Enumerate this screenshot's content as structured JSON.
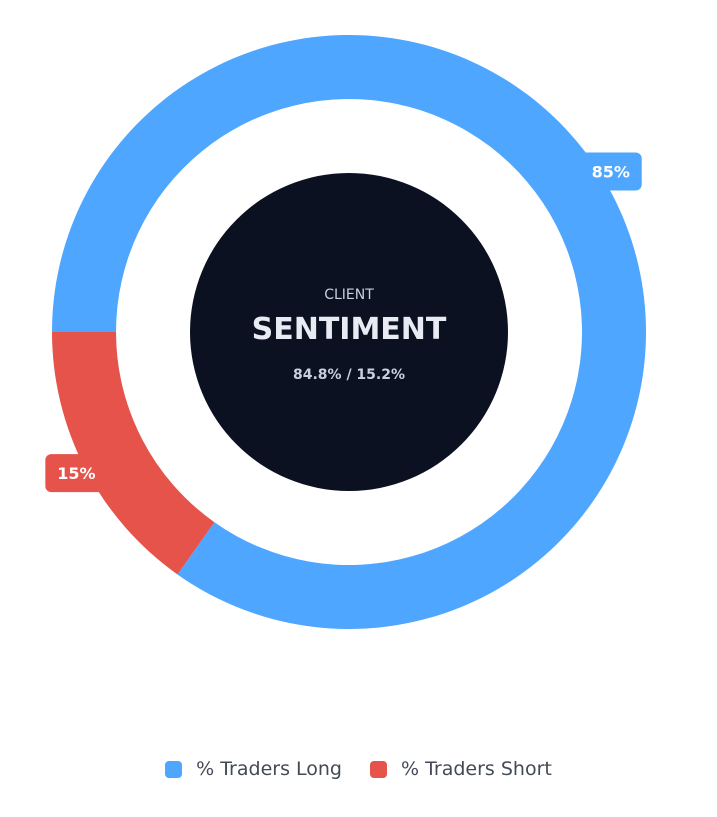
{
  "chart_data": {
    "type": "pie",
    "variant": "donut",
    "title": "",
    "series": [
      {
        "name": "% Traders Long",
        "value": 84.8,
        "label": "85%",
        "color": "#4ea6ff"
      },
      {
        "name": "% Traders Short",
        "value": 15.2,
        "label": "15%",
        "color": "#e5534b"
      }
    ],
    "center": {
      "kicker": "CLIENT",
      "title": "SENTIMENT",
      "subtitle": "84.8% / 15.2%",
      "background": "#0b1120"
    },
    "legend_position": "bottom"
  }
}
